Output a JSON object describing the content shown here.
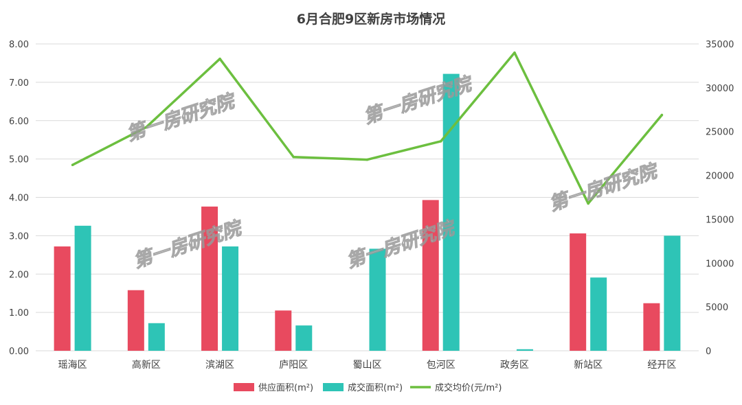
{
  "chart_data": {
    "type": "bar",
    "title": "6月合肥9区新房市场情况",
    "categories": [
      "瑶海区",
      "高新区",
      "滨湖区",
      "庐阳区",
      "蜀山区",
      "包河区",
      "政务区",
      "新站区",
      "经开区"
    ],
    "series": [
      {
        "name": "供应面积(m²)",
        "type": "bar",
        "axis": "left",
        "color": "#e84a5f",
        "values": [
          2.72,
          1.58,
          3.76,
          1.05,
          0,
          3.93,
          0,
          3.06,
          1.24
        ]
      },
      {
        "name": "成交面积(m²)",
        "type": "bar",
        "axis": "left",
        "color": "#2ec4b6",
        "values": [
          3.26,
          0.72,
          2.72,
          0.66,
          2.66,
          7.22,
          0.04,
          1.91,
          3.0
        ]
      },
      {
        "name": "成交均价(元/m²)",
        "type": "line",
        "axis": "right",
        "color": "#6cbf3f",
        "values": [
          21200,
          25500,
          33300,
          22100,
          21800,
          23900,
          34000,
          16800,
          26900
        ]
      }
    ],
    "y_left": {
      "min": 0,
      "max": 8,
      "step": 1,
      "ticks": [
        "0.00",
        "1.00",
        "2.00",
        "3.00",
        "4.00",
        "5.00",
        "6.00",
        "7.00",
        "8.00"
      ]
    },
    "y_right": {
      "min": 0,
      "max": 35000,
      "step": 5000,
      "ticks": [
        "0",
        "5000",
        "10000",
        "15000",
        "20000",
        "25000",
        "30000",
        "35000"
      ]
    },
    "grid": true,
    "legend_position": "bottom"
  },
  "watermark": {
    "text": "第一房研究院"
  },
  "colors": {
    "grid": "#d9d9d9",
    "text": "#404040"
  }
}
